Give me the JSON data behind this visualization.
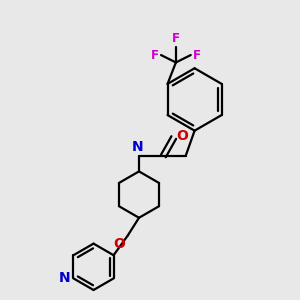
{
  "background_color": "#e8e8e8",
  "bond_color": "#000000",
  "nitrogen_color": "#0000cc",
  "oxygen_color": "#cc0000",
  "fluorine_color": "#cc00cc",
  "line_width": 1.6,
  "figsize": [
    3.0,
    3.0
  ],
  "dpi": 100,
  "xlim": [
    0,
    10
  ],
  "ylim": [
    0,
    10
  ]
}
